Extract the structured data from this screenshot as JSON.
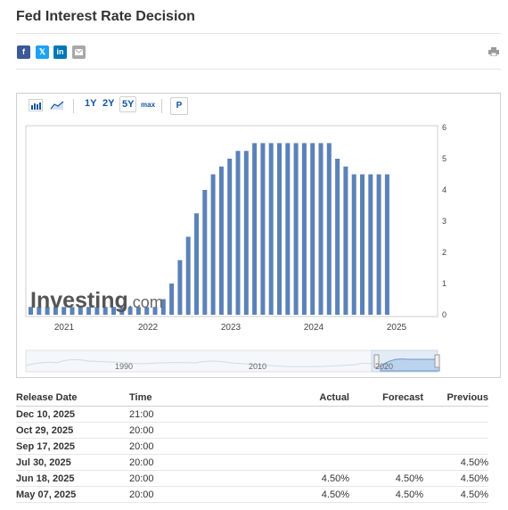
{
  "page": {
    "title": "Fed Interest Rate Decision"
  },
  "share": {
    "facebook": "f",
    "twitter": "𝕏",
    "linkedin": "in"
  },
  "toolbar": {
    "ranges": [
      "1Y",
      "2Y",
      "5Y",
      "max"
    ],
    "selected_range": "5Y",
    "p_label": "P"
  },
  "colors": {
    "bar": "#5b82b8",
    "link": "#1256a0",
    "navigator": "#bcd3ee"
  },
  "chart_data": {
    "type": "bar",
    "yticks": [
      0,
      1,
      2,
      3,
      4,
      5,
      6
    ],
    "ylim": [
      0,
      6
    ],
    "xlabels": [
      "2021",
      "2022",
      "2023",
      "2024",
      "2025"
    ],
    "x_range": [
      "2020-09",
      "2025-12"
    ],
    "navigator_labels": [
      "1990",
      "2010",
      "2020"
    ],
    "watermark": "Investing.com",
    "values": [
      0.25,
      0.25,
      0.25,
      0.25,
      0.25,
      0.25,
      0.25,
      0.25,
      0.25,
      0.25,
      0.25,
      0.25,
      0.25,
      0.25,
      0.25,
      0.25,
      0.5,
      1.0,
      1.75,
      2.5,
      3.25,
      4.0,
      4.5,
      4.75,
      5.0,
      5.25,
      5.25,
      5.5,
      5.5,
      5.5,
      5.5,
      5.5,
      5.5,
      5.5,
      5.5,
      5.5,
      5.5,
      5.0,
      4.75,
      4.5,
      4.5,
      4.5,
      4.5,
      4.5
    ]
  },
  "table": {
    "headers": {
      "date": "Release Date",
      "time": "Time",
      "actual": "Actual",
      "forecast": "Forecast",
      "previous": "Previous"
    },
    "rows": [
      {
        "date": "Dec 10, 2025",
        "time": "21:00",
        "actual": "",
        "forecast": "",
        "previous": ""
      },
      {
        "date": "Oct 29, 2025",
        "time": "20:00",
        "actual": "",
        "forecast": "",
        "previous": ""
      },
      {
        "date": "Sep 17, 2025",
        "time": "20:00",
        "actual": "",
        "forecast": "",
        "previous": ""
      },
      {
        "date": "Jul 30, 2025",
        "time": "20:00",
        "actual": "",
        "forecast": "",
        "previous": "4.50%"
      },
      {
        "date": "Jun 18, 2025",
        "time": "20:00",
        "actual": "4.50%",
        "forecast": "4.50%",
        "previous": "4.50%"
      },
      {
        "date": "May 07, 2025",
        "time": "20:00",
        "actual": "4.50%",
        "forecast": "4.50%",
        "previous": "4.50%"
      }
    ]
  }
}
